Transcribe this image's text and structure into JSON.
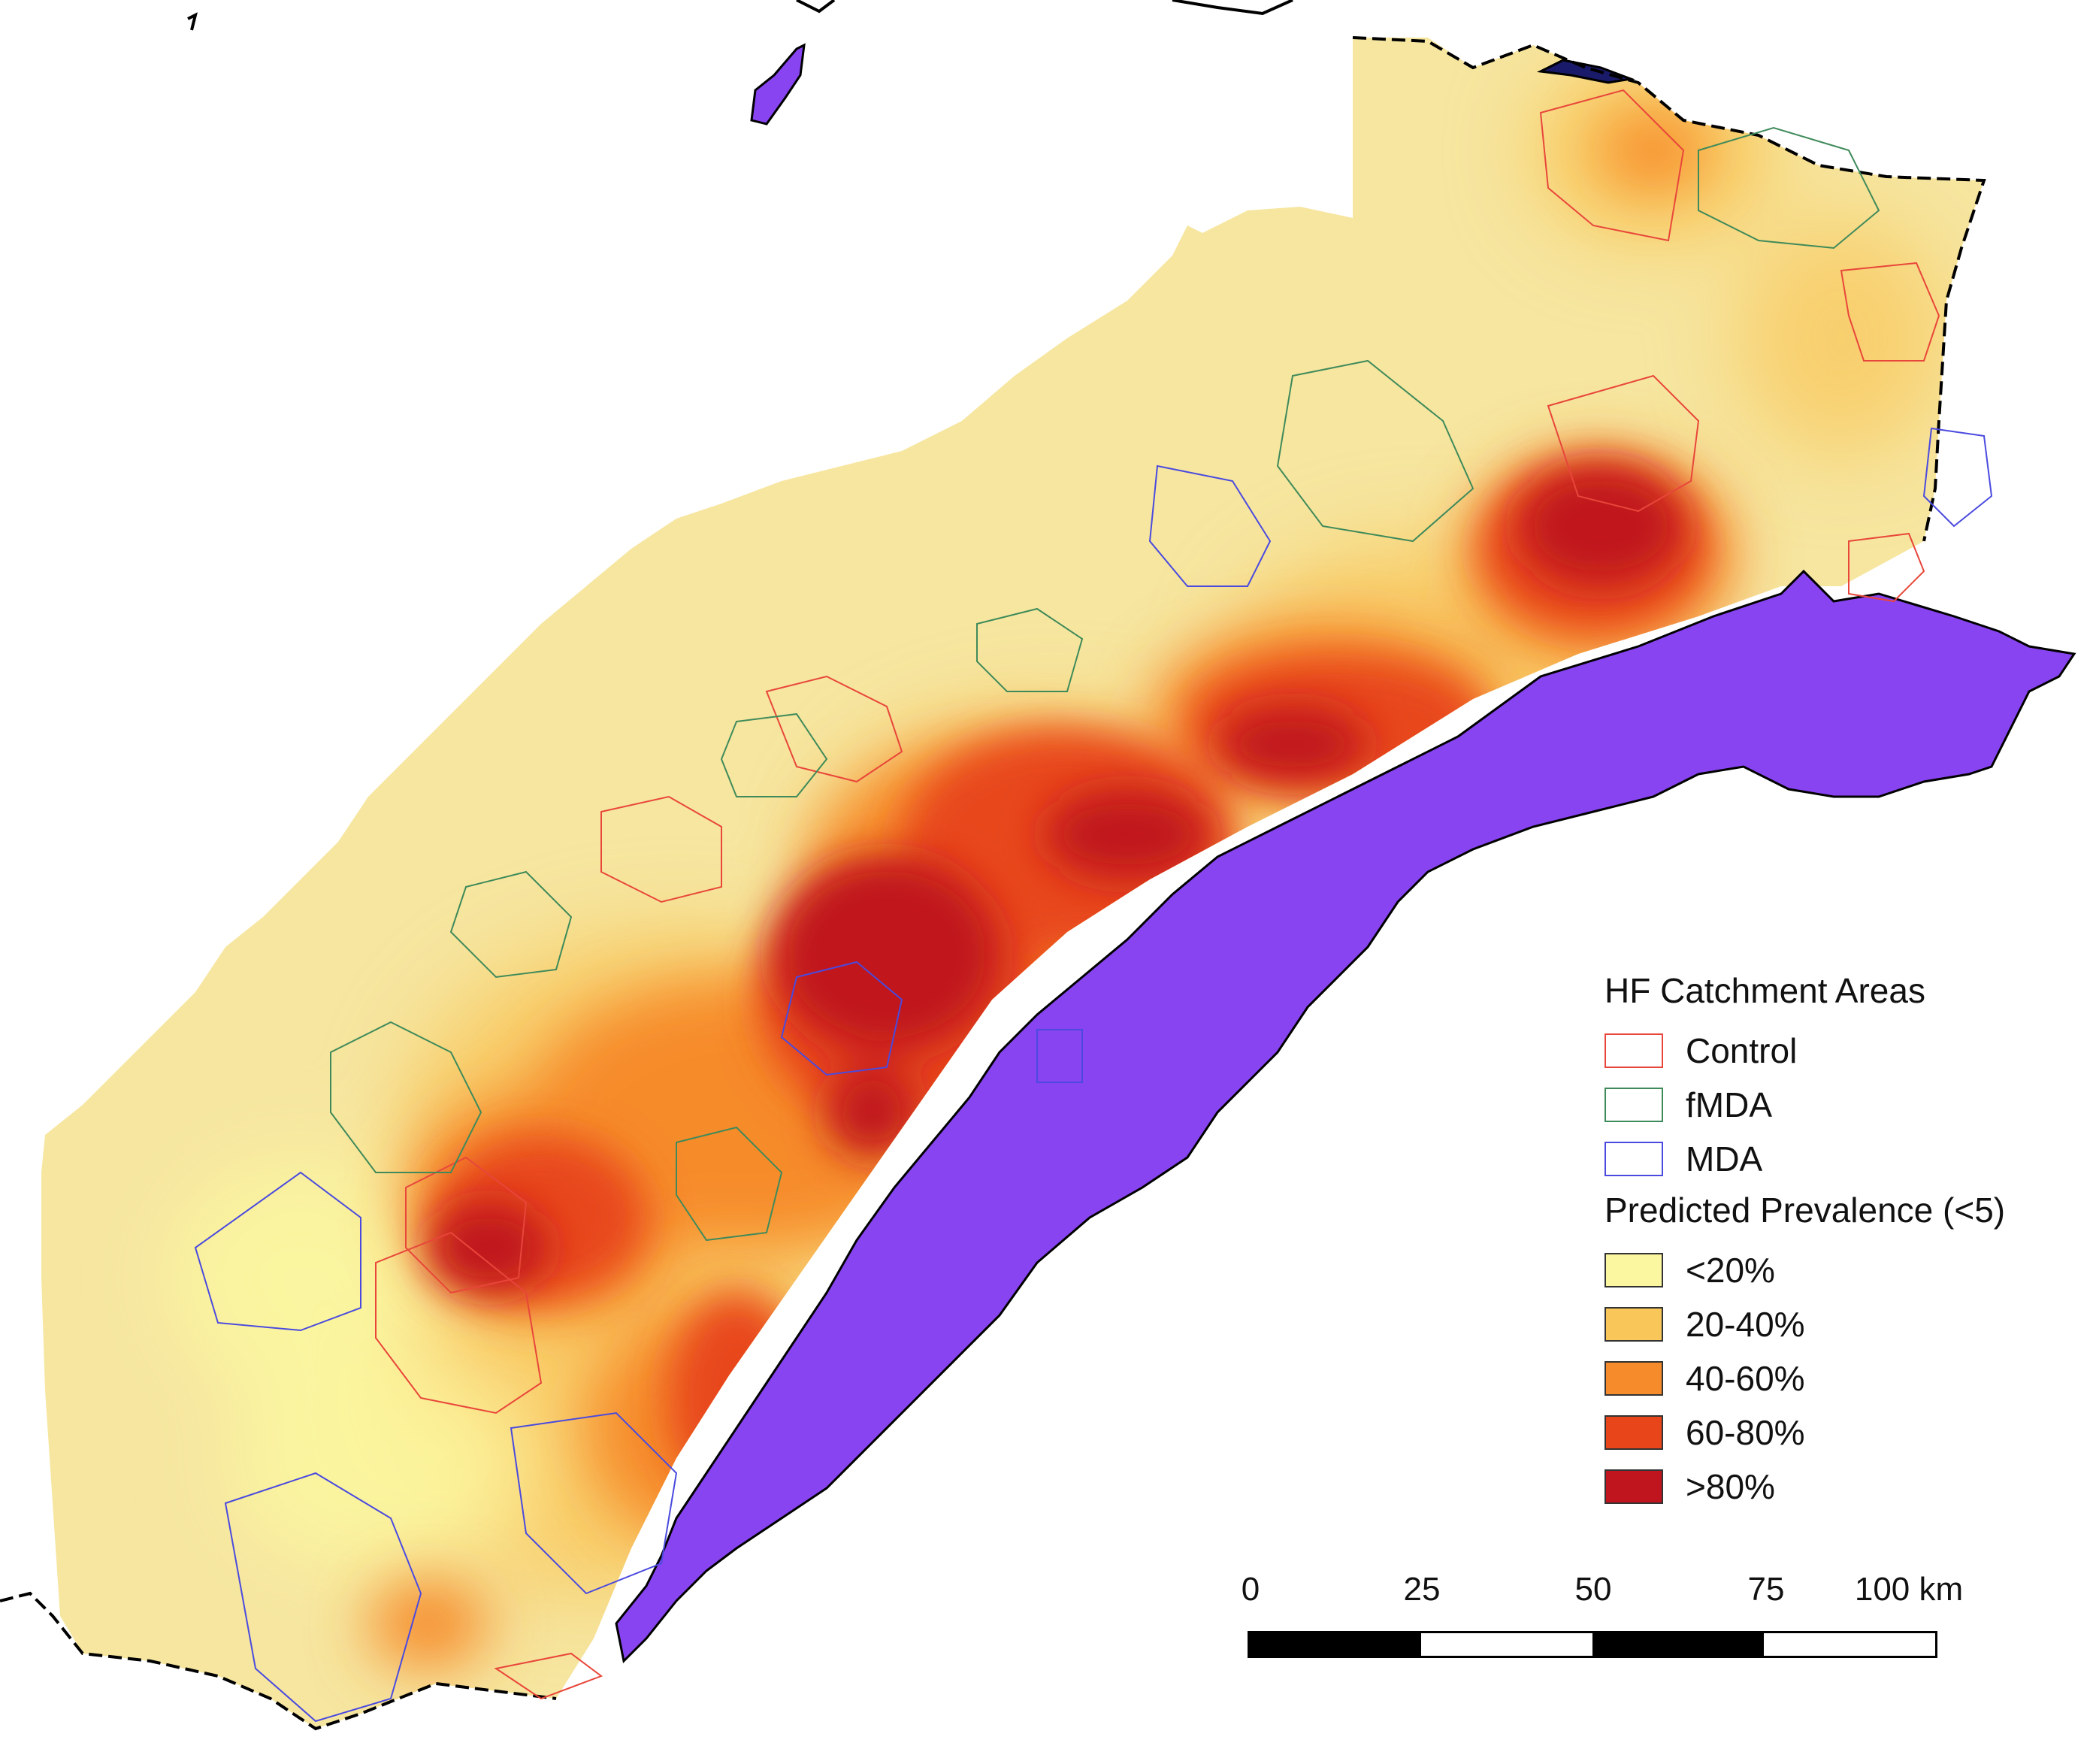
{
  "legend": {
    "catchment_title": "HF Catchment Areas",
    "catchments": [
      {
        "label": "Control",
        "color": "#e8463a"
      },
      {
        "label": "fMDA",
        "color": "#3f8a5a"
      },
      {
        "label": "MDA",
        "color": "#4a4adf"
      }
    ],
    "prevalence_title": "Predicted Prevalence (<5)",
    "prevalence": [
      {
        "label": "<20%",
        "color": "#fbf6a0"
      },
      {
        "label": "20-40%",
        "color": "#f9c65a"
      },
      {
        "label": "40-60%",
        "color": "#f68b2c"
      },
      {
        "label": "60-80%",
        "color": "#e8461a"
      },
      {
        "label": ">80%",
        "color": "#c0141f"
      }
    ]
  },
  "scale": {
    "ticks": [
      "0",
      "25",
      "50",
      "75",
      "100 km"
    ],
    "segments": [
      "dark",
      "light",
      "dark",
      "light"
    ]
  },
  "colors": {
    "lake": "#8844f0",
    "background": "#ffffff",
    "border": "#000000"
  }
}
